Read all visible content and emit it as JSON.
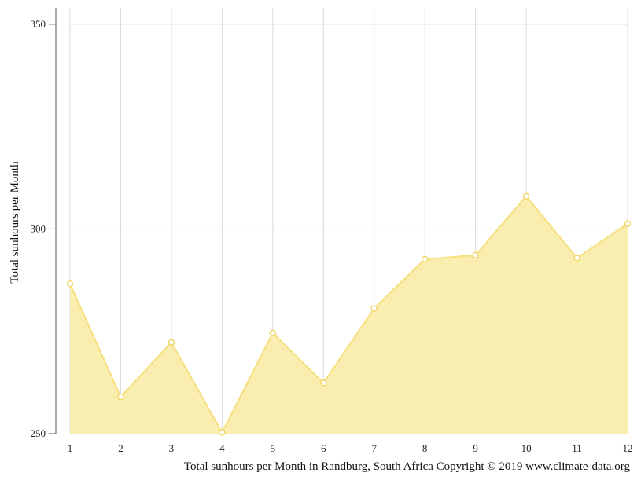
{
  "chart_data": {
    "type": "area",
    "title": "",
    "xlabel": "",
    "ylabel": "Total sunhours per Month",
    "x": [
      1,
      2,
      3,
      4,
      5,
      6,
      7,
      8,
      9,
      10,
      11,
      12
    ],
    "x_tick_labels": [
      "1",
      "2",
      "3",
      "4",
      "5",
      "6",
      "7",
      "8",
      "9",
      "10",
      "11",
      "12"
    ],
    "y_ticks": [
      250,
      300,
      350
    ],
    "y_tick_labels": [
      "250",
      "300",
      "350"
    ],
    "ylim": [
      250,
      354
    ],
    "grid": true,
    "series": [
      {
        "values": [
          286.6,
          259.0,
          272.3,
          250.3,
          274.6,
          262.4,
          280.6,
          292.6,
          293.6,
          308.0,
          292.9,
          301.3
        ]
      }
    ],
    "colors": {
      "fill": "#f9eeb0",
      "line": "#f6e07e",
      "marker_fill": "#ffffff",
      "marker_stroke": "#f0d35a",
      "grid": "#d9d9d9",
      "axis": "#555555"
    },
    "footer": "Total sunhours per Month in Randburg, South Africa Copyright © 2019 www.climate-data.org"
  }
}
